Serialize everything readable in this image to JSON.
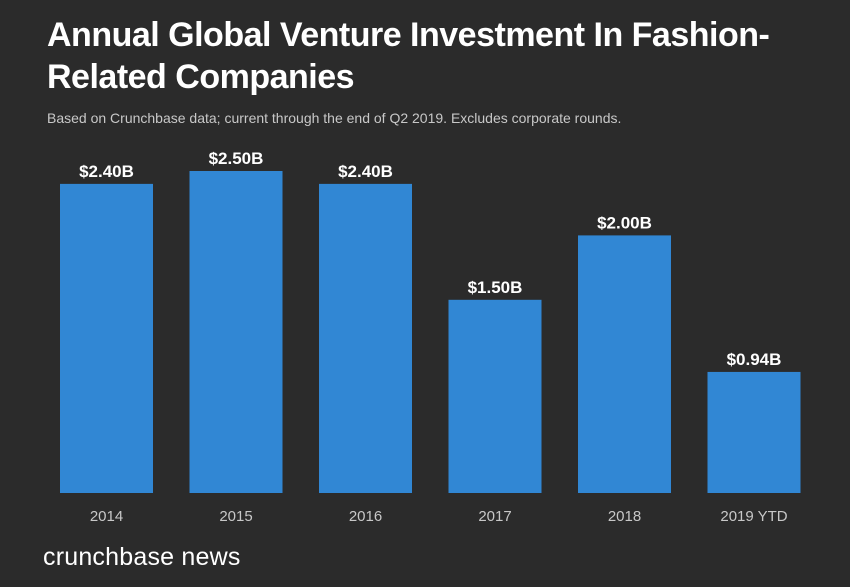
{
  "title": "Annual Global Venture Investment In Fashion-Related Companies",
  "subtitle": "Based on Crunchbase data; current through the end of Q2 2019. Excludes corporate rounds.",
  "brand": "crunchbase news",
  "colors": {
    "bar": "#3187d4",
    "background": "#2b2b2b",
    "subtitle": "#c8c8c8",
    "axis_label": "#c8c8c8"
  },
  "chart_data": {
    "type": "bar",
    "title": "Annual Global Venture Investment In Fashion-Related Companies",
    "subtitle": "Based on Crunchbase data; current through the end of Q2 2019. Excludes corporate rounds.",
    "categories": [
      "2014",
      "2015",
      "2016",
      "2017",
      "2018",
      "2019 YTD"
    ],
    "values": [
      2.4,
      2.5,
      2.4,
      1.5,
      2.0,
      0.94
    ],
    "labels": [
      "$2.40B",
      "$2.50B",
      "$2.40B",
      "$1.50B",
      "$2.00B",
      "$0.94B"
    ],
    "unit": "B",
    "xlabel": "",
    "ylabel": "",
    "ylim": [
      0,
      2.5
    ],
    "grid": false,
    "legend": "none"
  }
}
